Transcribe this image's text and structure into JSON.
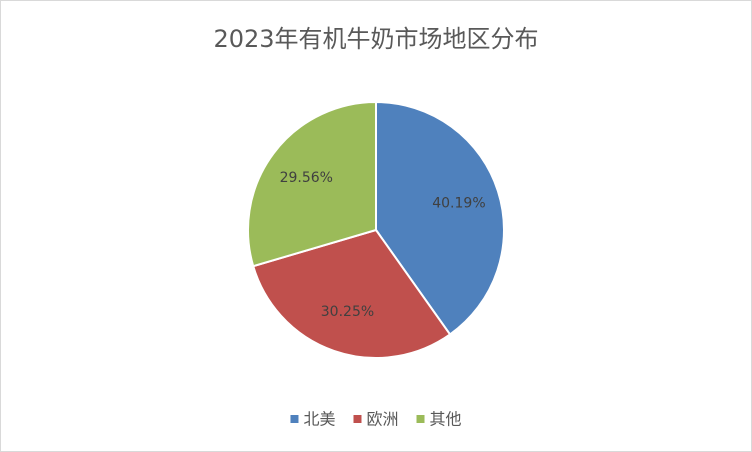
{
  "chart_data": {
    "type": "pie",
    "title": "2023年有机牛奶市场地区分布",
    "categories": [
      "北美",
      "欧洲",
      "其他"
    ],
    "values": [
      40.19,
      30.25,
      29.56
    ],
    "value_labels": [
      "40.19%",
      "30.25%",
      "29.56%"
    ],
    "colors": [
      "#4f81bd",
      "#c0504d",
      "#9bbb59"
    ],
    "legend": "bottom"
  }
}
